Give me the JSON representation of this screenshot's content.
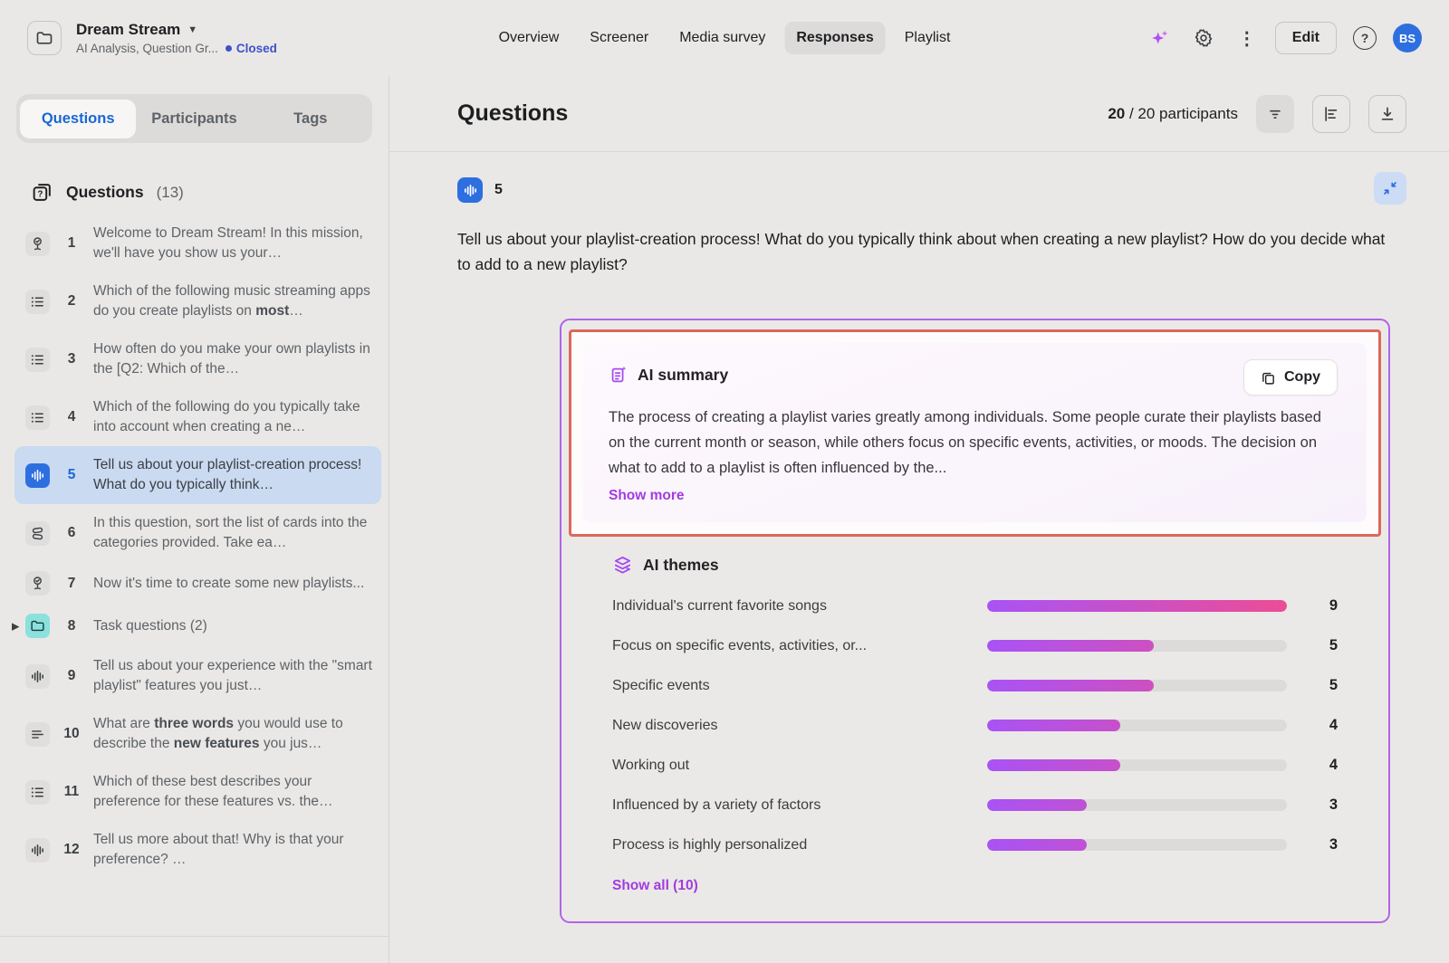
{
  "colors": {
    "accent_blue": "#1967d2",
    "selected_row": "#cadaf1",
    "status_blue": "#3d51c9",
    "purple_link": "#a33be0",
    "highlight_red": "#dd685b",
    "card_purple_border": "#b164ea",
    "bar_gradient_start": "#a953f5",
    "bar_gradient_end": "#ec4d96"
  },
  "header": {
    "project_name": "Dream Stream",
    "project_subtitle": "AI Analysis, Question Gr...",
    "project_status": "Closed",
    "nav": [
      {
        "label": "Overview",
        "active": false
      },
      {
        "label": "Screener",
        "active": false
      },
      {
        "label": "Media survey",
        "active": false
      },
      {
        "label": "Responses",
        "active": true
      },
      {
        "label": "Playlist",
        "active": false
      }
    ],
    "edit_label": "Edit",
    "avatar_initials": "BS"
  },
  "sidebar": {
    "tabs": [
      {
        "label": "Questions",
        "active": true
      },
      {
        "label": "Participants",
        "active": false
      },
      {
        "label": "Tags",
        "active": false
      }
    ],
    "section_title": "Questions",
    "section_count": "(13)",
    "items": [
      {
        "num": "1",
        "icon": "mission",
        "selected": false,
        "segments": [
          {
            "t": "Welcome to Dream Stream! In this mission, we'll have you show us your…"
          }
        ]
      },
      {
        "num": "2",
        "icon": "list",
        "selected": false,
        "segments": [
          {
            "t": "Which of the following music streaming apps do you create playlists on "
          },
          {
            "t": "most",
            "b": true
          },
          {
            "t": "…"
          }
        ]
      },
      {
        "num": "3",
        "icon": "list",
        "selected": false,
        "segments": [
          {
            "t": "How often do you make your own playlists in the [Q2: Which of the…"
          }
        ]
      },
      {
        "num": "4",
        "icon": "list",
        "selected": false,
        "segments": [
          {
            "t": "Which of the following do you typically take into account when creating a ne…"
          }
        ]
      },
      {
        "num": "5",
        "icon": "audio",
        "selected": true,
        "segments": [
          {
            "t": "Tell us about your playlist-creation process! What do you typically think…"
          }
        ]
      },
      {
        "num": "6",
        "icon": "cardsort",
        "selected": false,
        "segments": [
          {
            "t": "In this question, sort the list of cards into the categories provided. Take ea…"
          }
        ]
      },
      {
        "num": "7",
        "icon": "mission",
        "selected": false,
        "segments": [
          {
            "t": "Now it's time to create some new playlists..."
          }
        ]
      },
      {
        "num": "8",
        "icon": "folder",
        "selected": false,
        "chevron": true,
        "segments": [
          {
            "t": "Task questions  (2)"
          }
        ]
      },
      {
        "num": "9",
        "icon": "audio",
        "selected": false,
        "segments": [
          {
            "t": "Tell us about your experience with the \"smart playlist\" features you just…"
          }
        ]
      },
      {
        "num": "10",
        "icon": "text",
        "selected": false,
        "segments": [
          {
            "t": "What are "
          },
          {
            "t": "three words",
            "b": true
          },
          {
            "t": " you would use to describe the "
          },
          {
            "t": "new features",
            "b": true
          },
          {
            "t": " you jus…"
          }
        ]
      },
      {
        "num": "11",
        "icon": "list",
        "selected": false,
        "segments": [
          {
            "t": "Which of these best describes your preference for these features vs. the…"
          }
        ]
      },
      {
        "num": "12",
        "icon": "audio",
        "selected": false,
        "segments": [
          {
            "t": "Tell us more about that! Why is that your preference? …"
          }
        ]
      }
    ]
  },
  "main": {
    "title": "Questions",
    "participants_count": "20",
    "participants_rest": " / 20 participants",
    "question": {
      "number": "5",
      "text": "Tell us about your playlist-creation process! What do you typically think about when creating a new playlist? How do you decide what to add to a new playlist?"
    },
    "ai_summary": {
      "title": "AI summary",
      "copy_label": "Copy",
      "body": "The process of creating a playlist varies greatly among individuals. Some people curate their playlists based on the current month or season, while others focus on specific events, activities, or moods. The decision on what to add to a playlist is often influenced by the...",
      "show_more_label": "Show more"
    },
    "ai_themes": {
      "title": "AI themes",
      "show_all_label": "Show all (10)"
    }
  },
  "chart_data": {
    "type": "bar",
    "title": "AI themes",
    "orientation": "horizontal",
    "max": 9,
    "categories": [
      "Individual's current favorite songs",
      "Focus on specific events, activities, or...",
      "Specific events",
      "New discoveries",
      "Working out",
      "Influenced by a variety of factors",
      "Process is highly personalized"
    ],
    "values": [
      9,
      5,
      5,
      4,
      4,
      3,
      3
    ]
  }
}
